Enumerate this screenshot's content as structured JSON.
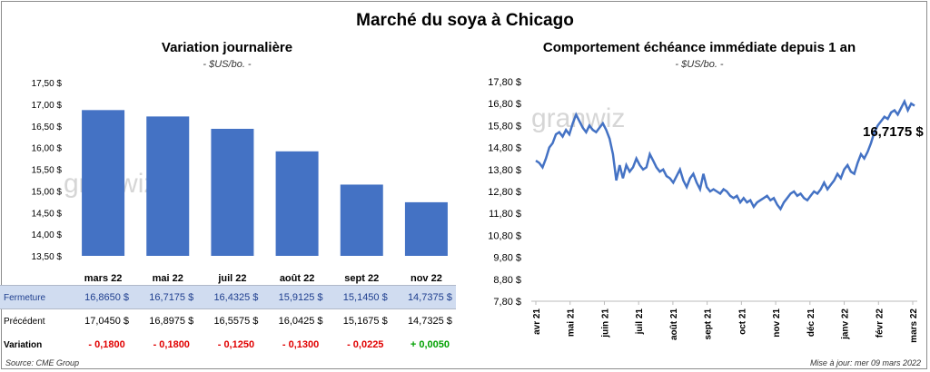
{
  "title": "Marché du soya à Chicago",
  "left": {
    "title": "Variation journalière",
    "unit": "- $US/bo. -",
    "watermark": "granwiz"
  },
  "right": {
    "title": "Comportement échéance immédiate depuis 1 an",
    "unit": "- $US/bo. -",
    "watermark": "granwiz",
    "last_label": "16,7175 $"
  },
  "source": "Source: CME Group",
  "update": "Mise à jour: mer 09 mars 2022",
  "table": {
    "row_labels": [
      "Fermeture",
      "Précédent",
      "Variation"
    ],
    "fermeture": [
      "16,8650 $",
      "16,7175 $",
      "16,4325 $",
      "15,9125 $",
      "15,1450 $",
      "14,7375 $"
    ],
    "precedent": [
      "17,0450 $",
      "16,8975 $",
      "16,5575 $",
      "16,0425 $",
      "15,1675 $",
      "14,7325 $"
    ],
    "variation": [
      "- 0,1800",
      "- 0,1800",
      "- 0,1250",
      "- 0,1300",
      "- 0,0225",
      "+ 0,0050"
    ]
  },
  "colors": {
    "bar": "#4472c4",
    "line": "#4472c4",
    "neg": "#e00000",
    "pos": "#00a000",
    "band": "#d0dcf0"
  },
  "chart_data": [
    {
      "type": "bar",
      "categories": [
        "mars 22",
        "mai 22",
        "juil 22",
        "août 22",
        "sept 22",
        "nov 22"
      ],
      "values": [
        16.865,
        16.7175,
        16.4325,
        15.9125,
        15.145,
        14.7375
      ],
      "ylim": [
        13.5,
        17.5
      ],
      "yticks": [
        "17,50 $",
        "17,00 $",
        "16,50 $",
        "16,00 $",
        "15,50 $",
        "15,00 $",
        "14,50 $",
        "14,00 $",
        "13,50 $"
      ],
      "grid": false
    },
    {
      "type": "line",
      "ylim": [
        7.8,
        17.8
      ],
      "yticks": [
        "17,80 $",
        "16,80 $",
        "15,80 $",
        "14,80 $",
        "13,80 $",
        "12,80 $",
        "11,80 $",
        "10,80 $",
        "9,80 $",
        "8,80 $",
        "7,80 $"
      ],
      "xticks": [
        "avr 21",
        "mai 21",
        "juin 21",
        "juil 21",
        "août 21",
        "sept 21",
        "oct 21",
        "nov 21",
        "déc 21",
        "janv 22",
        "févr 22",
        "mars 22"
      ],
      "series": [
        {
          "values": [
            14.2,
            14.1,
            13.9,
            14.3,
            14.8,
            15.0,
            15.4,
            15.5,
            15.3,
            15.6,
            15.4,
            15.9,
            16.3,
            16.0,
            15.7,
            15.5,
            15.8,
            15.6,
            15.5,
            15.7,
            15.9,
            15.6,
            15.2,
            14.5,
            13.3,
            14.0,
            13.4,
            14.0,
            13.7,
            13.9,
            14.3,
            14.0,
            13.8,
            13.9,
            14.5,
            14.2,
            13.9,
            13.7,
            13.8,
            13.5,
            13.4,
            13.2,
            13.5,
            13.8,
            13.3,
            13.0,
            13.4,
            13.6,
            13.2,
            12.9,
            13.6,
            13.0,
            12.8,
            12.9,
            12.8,
            12.7,
            12.9,
            12.8,
            12.6,
            12.5,
            12.6,
            12.3,
            12.5,
            12.3,
            12.4,
            12.1,
            12.3,
            12.4,
            12.5,
            12.6,
            12.4,
            12.5,
            12.2,
            12.0,
            12.3,
            12.5,
            12.7,
            12.8,
            12.6,
            12.7,
            12.5,
            12.4,
            12.6,
            12.8,
            12.7,
            12.9,
            13.2,
            12.9,
            13.1,
            13.3,
            13.6,
            13.4,
            13.8,
            14.0,
            13.7,
            13.6,
            14.1,
            14.5,
            14.3,
            14.6,
            15.0,
            15.5,
            15.8,
            16.0,
            16.2,
            16.1,
            16.4,
            16.5,
            16.3,
            16.6,
            16.9,
            16.5,
            16.8,
            16.7
          ]
        }
      ]
    }
  ]
}
